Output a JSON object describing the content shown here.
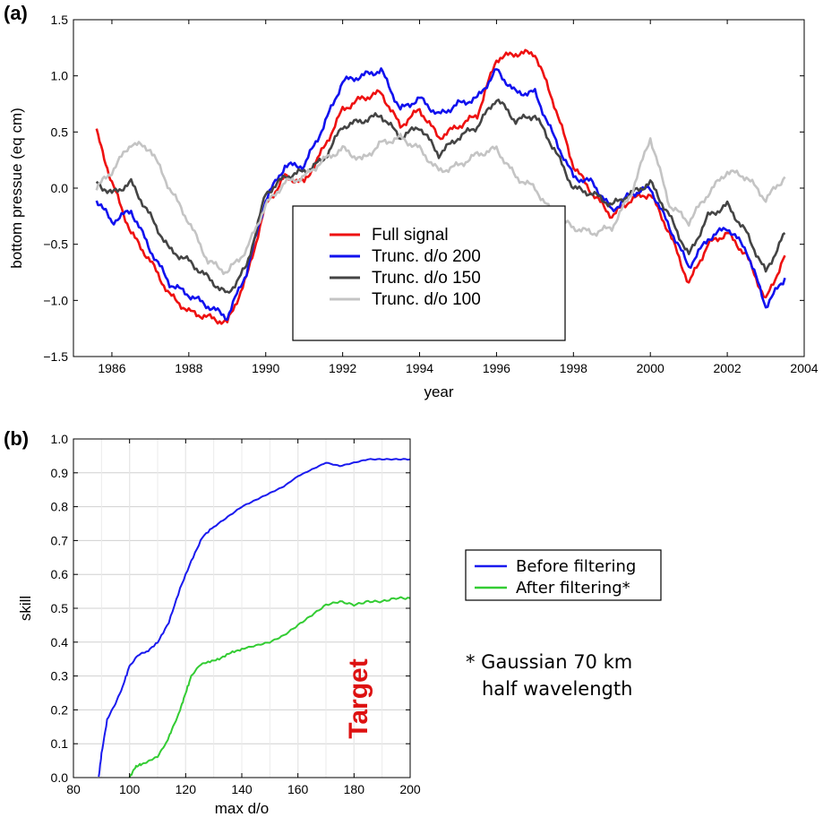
{
  "panel_a_label": "(a)",
  "panel_b_label": "(b)",
  "note_line1": "* Gaussian 70 km",
  "note_line2": "half wavelength",
  "target_text": "Target",
  "chart_data": [
    {
      "type": "line",
      "xlabel": "year",
      "ylabel": "bottom pressue (eq cm)",
      "xlim": [
        1985,
        2004
      ],
      "ylim": [
        -1.5,
        1.5
      ],
      "xticks": [
        1986,
        1988,
        1990,
        1992,
        1994,
        1996,
        1998,
        2000,
        2002,
        2004
      ],
      "yticks": [
        -1.5,
        -1.0,
        -0.5,
        0.0,
        0.5,
        1.0,
        1.5
      ],
      "ytick_labels": [
        "−1.5",
        "−1.0",
        "−0.5",
        "0.0",
        "0.5",
        "1.0",
        "1.5"
      ],
      "grid": false,
      "legend_position": "center",
      "series": [
        {
          "name": "Full signal",
          "color": "#ee1111",
          "x": [
            1985.6,
            1986.0,
            1986.5,
            1987.0,
            1987.5,
            1988.0,
            1988.5,
            1989.0,
            1989.5,
            1990.0,
            1990.5,
            1991.0,
            1991.5,
            1992.0,
            1992.5,
            1993.0,
            1993.5,
            1994.0,
            1994.5,
            1995.0,
            1995.5,
            1996.0,
            1996.5,
            1997.0,
            1997.5,
            1998.0,
            1998.5,
            1999.0,
            1999.5,
            2000.0,
            2000.5,
            2001.0,
            2001.5,
            2002.0,
            2002.5,
            2003.0,
            2003.5
          ],
          "y": [
            0.5,
            0.05,
            -0.4,
            -0.65,
            -0.95,
            -1.1,
            -1.15,
            -1.2,
            -0.8,
            -0.15,
            0.1,
            0.05,
            0.35,
            0.7,
            0.8,
            0.85,
            0.55,
            0.7,
            0.45,
            0.55,
            0.65,
            1.15,
            1.2,
            1.2,
            0.75,
            0.2,
            -0.05,
            -0.25,
            -0.1,
            -0.05,
            -0.4,
            -0.85,
            -0.5,
            -0.4,
            -0.6,
            -1.0,
            -0.6
          ]
        },
        {
          "name": "Trunc. d/o 200",
          "color": "#1111ee",
          "x": [
            1985.6,
            1986.0,
            1986.5,
            1987.0,
            1987.5,
            1988.0,
            1988.5,
            1989.0,
            1989.5,
            1990.0,
            1990.5,
            1991.0,
            1991.5,
            1992.0,
            1992.5,
            1993.0,
            1993.5,
            1994.0,
            1994.5,
            1995.0,
            1995.5,
            1996.0,
            1996.5,
            1997.0,
            1997.5,
            1998.0,
            1998.5,
            1999.0,
            1999.5,
            2000.0,
            2000.5,
            2001.0,
            2001.5,
            2002.0,
            2002.5,
            2003.0,
            2003.5
          ],
          "y": [
            -0.1,
            -0.3,
            -0.2,
            -0.55,
            -0.85,
            -0.95,
            -1.05,
            -1.15,
            -0.75,
            -0.1,
            0.2,
            0.2,
            0.55,
            0.95,
            1.0,
            1.05,
            0.7,
            0.8,
            0.65,
            0.75,
            0.8,
            1.05,
            0.85,
            0.85,
            0.45,
            0.1,
            0.05,
            -0.2,
            -0.05,
            0.0,
            -0.35,
            -0.7,
            -0.45,
            -0.35,
            -0.55,
            -1.05,
            -0.8
          ]
        },
        {
          "name": "Trunc. d/o 150",
          "color": "#444444",
          "x": [
            1985.6,
            1986.0,
            1986.5,
            1987.0,
            1987.5,
            1988.0,
            1988.5,
            1989.0,
            1989.5,
            1990.0,
            1990.5,
            1991.0,
            1991.5,
            1992.0,
            1992.5,
            1993.0,
            1993.5,
            1994.0,
            1994.5,
            1995.0,
            1995.5,
            1996.0,
            1996.5,
            1997.0,
            1997.5,
            1998.0,
            1998.5,
            1999.0,
            1999.5,
            2000.0,
            2000.5,
            2001.0,
            2001.5,
            2002.0,
            2002.5,
            2003.0,
            2003.5
          ],
          "y": [
            0.05,
            -0.05,
            0.05,
            -0.25,
            -0.55,
            -0.65,
            -0.8,
            -0.95,
            -0.7,
            -0.05,
            0.1,
            0.15,
            0.25,
            0.55,
            0.6,
            0.65,
            0.45,
            0.55,
            0.3,
            0.45,
            0.55,
            0.8,
            0.6,
            0.65,
            0.35,
            0.0,
            -0.05,
            -0.15,
            -0.05,
            0.05,
            -0.25,
            -0.6,
            -0.25,
            -0.15,
            -0.4,
            -0.75,
            -0.4
          ]
        },
        {
          "name": "Trunc. d/o 100",
          "color": "#c4c4c4",
          "x": [
            1985.6,
            1986.0,
            1986.5,
            1987.0,
            1987.5,
            1988.0,
            1988.5,
            1989.0,
            1989.5,
            1990.0,
            1990.5,
            1991.0,
            1991.5,
            1992.0,
            1992.5,
            1993.0,
            1993.5,
            1994.0,
            1994.5,
            1995.0,
            1995.5,
            1996.0,
            1996.5,
            1997.0,
            1997.5,
            1998.0,
            1998.5,
            1999.0,
            1999.5,
            2000.0,
            2000.5,
            2001.0,
            2001.5,
            2002.0,
            2002.5,
            2003.0,
            2003.5
          ],
          "y": [
            0.0,
            0.15,
            0.4,
            0.35,
            0.0,
            -0.3,
            -0.65,
            -0.75,
            -0.55,
            -0.15,
            0.05,
            0.1,
            0.25,
            0.35,
            0.25,
            0.4,
            0.45,
            0.35,
            0.15,
            0.2,
            0.3,
            0.35,
            0.1,
            0.0,
            -0.25,
            -0.35,
            -0.4,
            -0.35,
            -0.05,
            0.45,
            -0.15,
            -0.3,
            -0.05,
            0.15,
            0.1,
            -0.1,
            0.1
          ]
        }
      ]
    },
    {
      "type": "line",
      "xlabel": "max d/o",
      "ylabel": "skill",
      "xlim": [
        80,
        200
      ],
      "ylim": [
        0.0,
        1.0
      ],
      "xticks": [
        80,
        100,
        120,
        140,
        160,
        180,
        200
      ],
      "yticks": [
        0.0,
        0.1,
        0.2,
        0.3,
        0.4,
        0.5,
        0.6,
        0.7,
        0.8,
        0.9,
        1.0
      ],
      "ytick_labels": [
        "0.0",
        "0.1",
        "0.2",
        "0.3",
        "0.4",
        "0.5",
        "0.6",
        "0.7",
        "0.8",
        "0.9",
        "1.0"
      ],
      "grid": true,
      "legend_position": "outside-right",
      "series": [
        {
          "name": "Before filtering",
          "color": "#1a1aee",
          "x": [
            89,
            90,
            92,
            95,
            98,
            100,
            103,
            106,
            110,
            114,
            118,
            122,
            126,
            130,
            135,
            140,
            145,
            150,
            155,
            160,
            165,
            170,
            175,
            180,
            185,
            190,
            195,
            200
          ],
          "y": [
            0.0,
            0.07,
            0.17,
            0.22,
            0.28,
            0.33,
            0.36,
            0.37,
            0.4,
            0.46,
            0.56,
            0.64,
            0.71,
            0.74,
            0.77,
            0.8,
            0.82,
            0.84,
            0.86,
            0.89,
            0.91,
            0.93,
            0.92,
            0.93,
            0.94,
            0.94,
            0.94,
            0.94
          ]
        },
        {
          "name": "After filtering*",
          "color": "#33cc33",
          "x": [
            100,
            102,
            104,
            107,
            110,
            113,
            115,
            118,
            120,
            122,
            125,
            128,
            132,
            136,
            140,
            145,
            150,
            155,
            160,
            165,
            170,
            175,
            180,
            185,
            190,
            195,
            200
          ],
          "y": [
            0.0,
            0.03,
            0.04,
            0.05,
            0.06,
            0.1,
            0.14,
            0.2,
            0.25,
            0.3,
            0.33,
            0.34,
            0.35,
            0.37,
            0.38,
            0.39,
            0.4,
            0.42,
            0.45,
            0.48,
            0.51,
            0.52,
            0.51,
            0.52,
            0.52,
            0.53,
            0.53
          ]
        }
      ]
    }
  ]
}
